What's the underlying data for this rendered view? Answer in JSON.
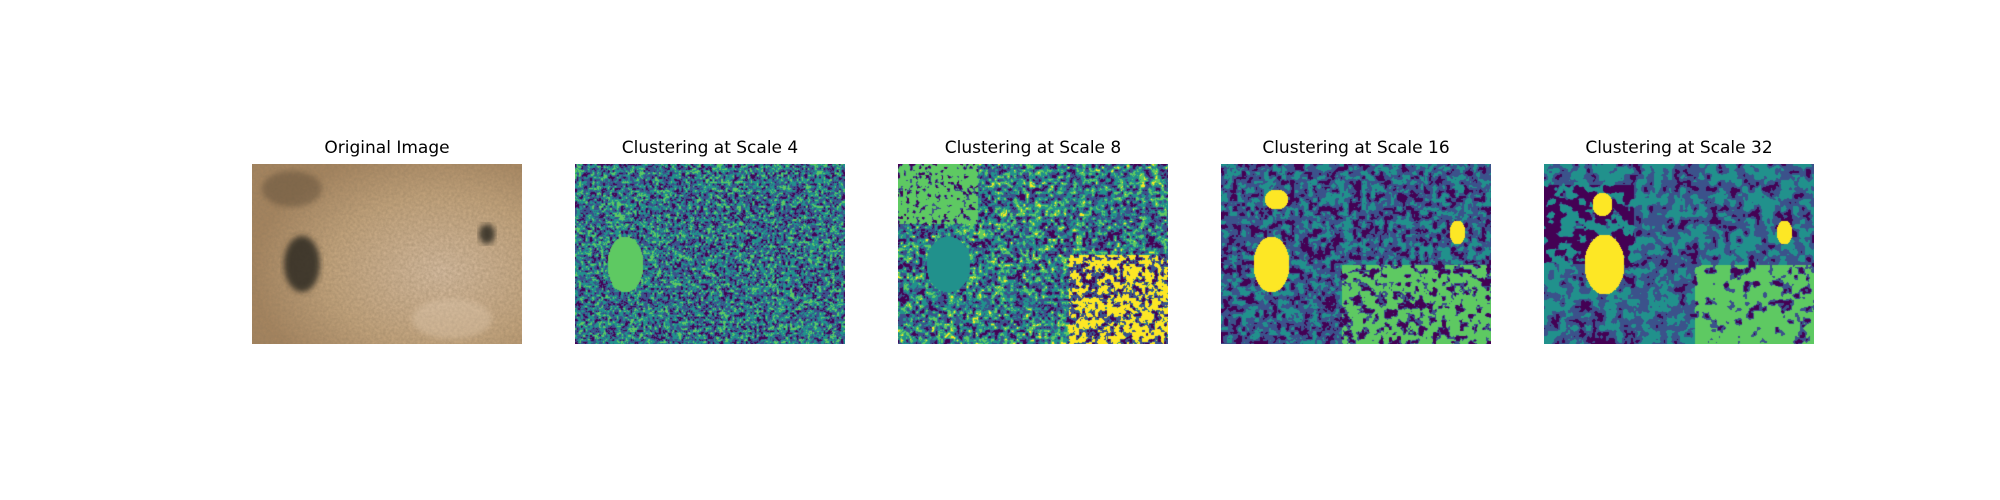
{
  "figure": {
    "panels": [
      {
        "title": "Original Image",
        "kind": "photo"
      },
      {
        "title": "Clustering at Scale 4",
        "kind": "clustering",
        "scale": 4
      },
      {
        "title": "Clustering at Scale 8",
        "kind": "clustering",
        "scale": 8
      },
      {
        "title": "Clustering at Scale 16",
        "kind": "clustering",
        "scale": 16
      },
      {
        "title": "Clustering at Scale 32",
        "kind": "clustering",
        "scale": 32
      }
    ],
    "colormap": {
      "name": "viridis",
      "colors": [
        "#440154",
        "#3b528b",
        "#21918c",
        "#5ec962",
        "#fde725"
      ]
    },
    "photo_palette": {
      "soil": "#c7a77f",
      "dry_grass": "#b89467",
      "shadow": "#2d2a22",
      "light_soil": "#d9bda0"
    }
  }
}
